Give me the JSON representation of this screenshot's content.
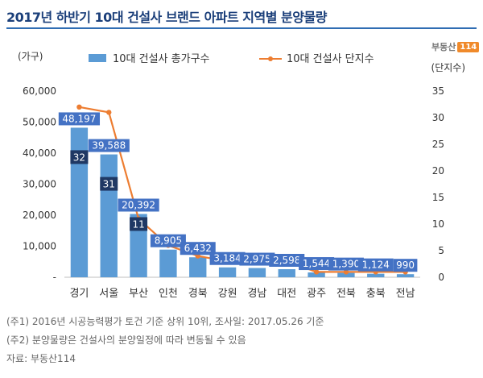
{
  "title": "2017년 하반기 10대 건설사 브랜드 아파트 지역별 분양물량",
  "brand": {
    "logo_text": "부동산",
    "logo_badge": "114"
  },
  "chart_data": {
    "type": "bar",
    "categories": [
      "경기",
      "서울",
      "부산",
      "인천",
      "경북",
      "강원",
      "경남",
      "대전",
      "광주",
      "전북",
      "충북",
      "전남"
    ],
    "series": [
      {
        "name": "10대 건설사 총가구수",
        "type": "bar",
        "axis": "left",
        "values": [
          48197,
          39588,
          20392,
          8905,
          6432,
          3184,
          2975,
          2598,
          1544,
          1390,
          1124,
          990
        ],
        "value_labels": [
          "48,197",
          "39,588",
          "20,392",
          "8,905",
          "6,432",
          "3,184",
          "2,975",
          "2,598",
          "1,544",
          "1,390",
          "1,124",
          "990"
        ]
      },
      {
        "name": "10대 건설사 단지수",
        "type": "line",
        "axis": "right",
        "values": [
          32,
          31,
          11,
          6,
          4,
          3,
          3,
          3,
          1,
          1,
          1,
          1
        ],
        "value_labels": [
          "32",
          "31",
          "11"
        ]
      }
    ],
    "ylabel": "(가구)",
    "y2label": "(단지수)",
    "ylim": [
      0,
      60000
    ],
    "y2lim": [
      0,
      35
    ],
    "yticks": [
      "-",
      "10,000",
      "20,000",
      "30,000",
      "40,000",
      "50,000",
      "60,000"
    ],
    "y2ticks": [
      "0",
      "5",
      "10",
      "15",
      "20",
      "25",
      "30",
      "35"
    ],
    "legend_position": "top",
    "colors": {
      "bar": "#5b9bd5",
      "line": "#ed7d31",
      "bar_label_bg": "#4472c4",
      "line_label_bg": "#1f3864"
    }
  },
  "notes": [
    "(주1) 2016년 시공능력평가 토건 기준 상위 10위, 조사일: 2017.05.26 기준",
    "(주2) 분양물량은 건설사의 분양일정에 따라 변동될 수 있음",
    "자료: 부동산114"
  ]
}
